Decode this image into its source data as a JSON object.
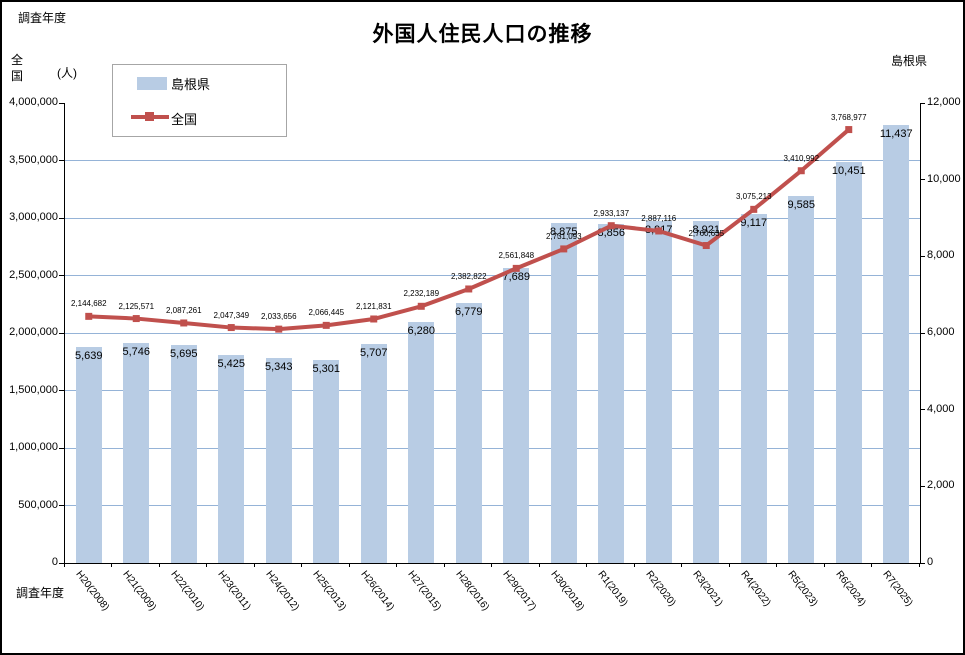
{
  "figure": {
    "title": "外国人住民人口の推移",
    "top_left_label": "調査年度",
    "left_axis_title": "全国",
    "left_axis_unit": "(人)",
    "right_axis_title": "島根県",
    "x_axis_title": "調査年度"
  },
  "legend": {
    "position": "top-left",
    "items": [
      {
        "label": "島根県",
        "marker": "bar-swatch"
      },
      {
        "label": "全国",
        "marker": "line-with-square"
      }
    ]
  },
  "colors": {
    "bar_fill": "#B8CCE4",
    "line": "#C0504D",
    "gridline": "#95B3D7",
    "axis": "#000000",
    "legend_border": "#A6A6A6"
  },
  "chart_data": {
    "type": "bar",
    "subtype": "combo-bar-line-dual-axis",
    "title": "外国人住民人口の推移",
    "categories": [
      "H20(2008)",
      "H21(2009)",
      "H22(2010)",
      "H23(2011)",
      "H24(2012)",
      "H25(2013)",
      "H26(2014)",
      "H27(2015)",
      "H28(2016)",
      "H29(2017)",
      "H30(2018)",
      "R1(2019)",
      "R2(2020)",
      "R3(2021)",
      "R4(2022)",
      "R5(2023)",
      "R6(2024)",
      "R7(2025)"
    ],
    "series": [
      {
        "name": "島根県",
        "type": "bar",
        "axis": "right",
        "color": "#B8CCE4",
        "values": [
          5639,
          5746,
          5695,
          5425,
          5343,
          5301,
          5707,
          6280,
          6779,
          7689,
          8875,
          8856,
          8917,
          8921,
          9117,
          9585,
          10451,
          11437
        ]
      },
      {
        "name": "全国",
        "type": "line",
        "axis": "left",
        "color": "#C0504D",
        "values": [
          2144682,
          2125571,
          2087261,
          2047349,
          2033656,
          2066445,
          2121831,
          2232189,
          2382822,
          2561848,
          2731093,
          2933137,
          2887116,
          2760635,
          3075213,
          3410992,
          3768977
        ]
      }
    ],
    "left_axis": {
      "title": "全国",
      "unit": "(人)",
      "min": 0,
      "max": 4000000,
      "major": 500000
    },
    "right_axis": {
      "title": "島根県",
      "min": 0,
      "max": 12000,
      "major": 2000
    },
    "xlabel": "調査年度",
    "grid": "horizontal-from-left-axis",
    "legend_position": "top-left",
    "data_labels": "all-points"
  }
}
